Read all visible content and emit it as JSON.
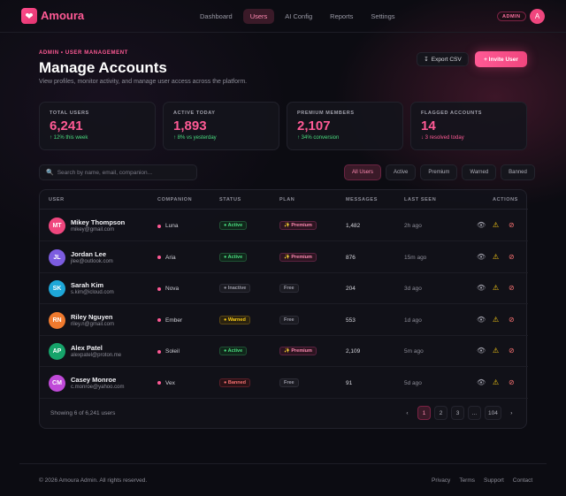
{
  "brand": {
    "name": "Amoura",
    "logo_icon": "heart-icon"
  },
  "nav": {
    "items": [
      {
        "label": "Dashboard",
        "active": false
      },
      {
        "label": "Users",
        "active": true
      },
      {
        "label": "AI Config",
        "active": false
      },
      {
        "label": "Reports",
        "active": false
      },
      {
        "label": "Settings",
        "active": false
      }
    ],
    "role_badge": "ADMIN",
    "avatar_initial": "A"
  },
  "header": {
    "kicker": "ADMIN • USER MANAGEMENT",
    "title": "Manage Accounts",
    "subtitle": "View profiles, monitor activity, and manage user access across the platform.",
    "export_label": "Export CSV",
    "invite_label": "+ Invite User"
  },
  "stats": [
    {
      "label": "TOTAL USERS",
      "value": "6,241",
      "delta": "↑ 12% this week",
      "trend": "up"
    },
    {
      "label": "ACTIVE TODAY",
      "value": "1,893",
      "delta": "↑ 8% vs yesterday",
      "trend": "up"
    },
    {
      "label": "PREMIUM MEMBERS",
      "value": "2,107",
      "delta": "↑ 34% conversion",
      "trend": "up"
    },
    {
      "label": "FLAGGED ACCOUNTS",
      "value": "14",
      "delta": "↓ 3 resolved today",
      "trend": "down"
    }
  ],
  "search": {
    "placeholder": "Search by name, email, companion..."
  },
  "filters": [
    {
      "label": "All Users",
      "active": true
    },
    {
      "label": "Active",
      "active": false
    },
    {
      "label": "Premium",
      "active": false
    },
    {
      "label": "Warned",
      "active": false
    },
    {
      "label": "Banned",
      "active": false
    }
  ],
  "table": {
    "columns": [
      "USER",
      "COMPANION",
      "STATUS",
      "PLAN",
      "MESSAGES",
      "LAST SEEN",
      "ACTIONS"
    ],
    "rows": [
      {
        "initials": "MT",
        "name": "Mikey Thompson",
        "email": "mikey@gmail.com",
        "companion": "Luna",
        "status": "● Active",
        "status_kind": "active",
        "plan": "✨ Premium",
        "plan_kind": "premium",
        "messages": "1,482",
        "last_seen": "2h ago",
        "avatar_color": "#f0467e"
      },
      {
        "initials": "JL",
        "name": "Jordan Lee",
        "email": "jlee@outlook.com",
        "companion": "Aria",
        "status": "● Active",
        "status_kind": "active",
        "plan": "✨ Premium",
        "plan_kind": "premium",
        "messages": "876",
        "last_seen": "15m ago",
        "avatar_color": "#7c5ce0"
      },
      {
        "initials": "SK",
        "name": "Sarah Kim",
        "email": "s.kim@icloud.com",
        "companion": "Nova",
        "status": "● Inactive",
        "status_kind": "inactive",
        "plan": "Free",
        "plan_kind": "free",
        "messages": "204",
        "last_seen": "3d ago",
        "avatar_color": "#1ea7d8"
      },
      {
        "initials": "RN",
        "name": "Riley Nguyen",
        "email": "riley.n@gmail.com",
        "companion": "Ember",
        "status": "● Warned",
        "status_kind": "warned",
        "plan": "Free",
        "plan_kind": "free",
        "messages": "553",
        "last_seen": "1d ago",
        "avatar_color": "#f07a2e"
      },
      {
        "initials": "AP",
        "name": "Alex Patel",
        "email": "alexpatel@proton.me",
        "companion": "Soleil",
        "status": "● Active",
        "status_kind": "active",
        "plan": "✨ Premium",
        "plan_kind": "premium",
        "messages": "2,109",
        "last_seen": "5m ago",
        "avatar_color": "#16a36a"
      },
      {
        "initials": "CM",
        "name": "Casey Monroe",
        "email": "c.monroe@yahoo.com",
        "companion": "Vex",
        "status": "● Banned",
        "status_kind": "banned",
        "plan": "Free",
        "plan_kind": "free",
        "messages": "91",
        "last_seen": "5d ago",
        "avatar_color": "#c04ad8"
      }
    ],
    "action_icons": [
      "eye-icon",
      "warning-icon",
      "ban-icon"
    ],
    "showing": "Showing 6 of 6,241 users",
    "pages": [
      "‹",
      "1",
      "2",
      "3",
      "...",
      "104",
      "›"
    ],
    "current_page": "1"
  },
  "footer": {
    "copyright": "© 2026 Amoura Admin. All rights reserved.",
    "links": [
      "Privacy",
      "Terms",
      "Support",
      "Contact"
    ]
  }
}
